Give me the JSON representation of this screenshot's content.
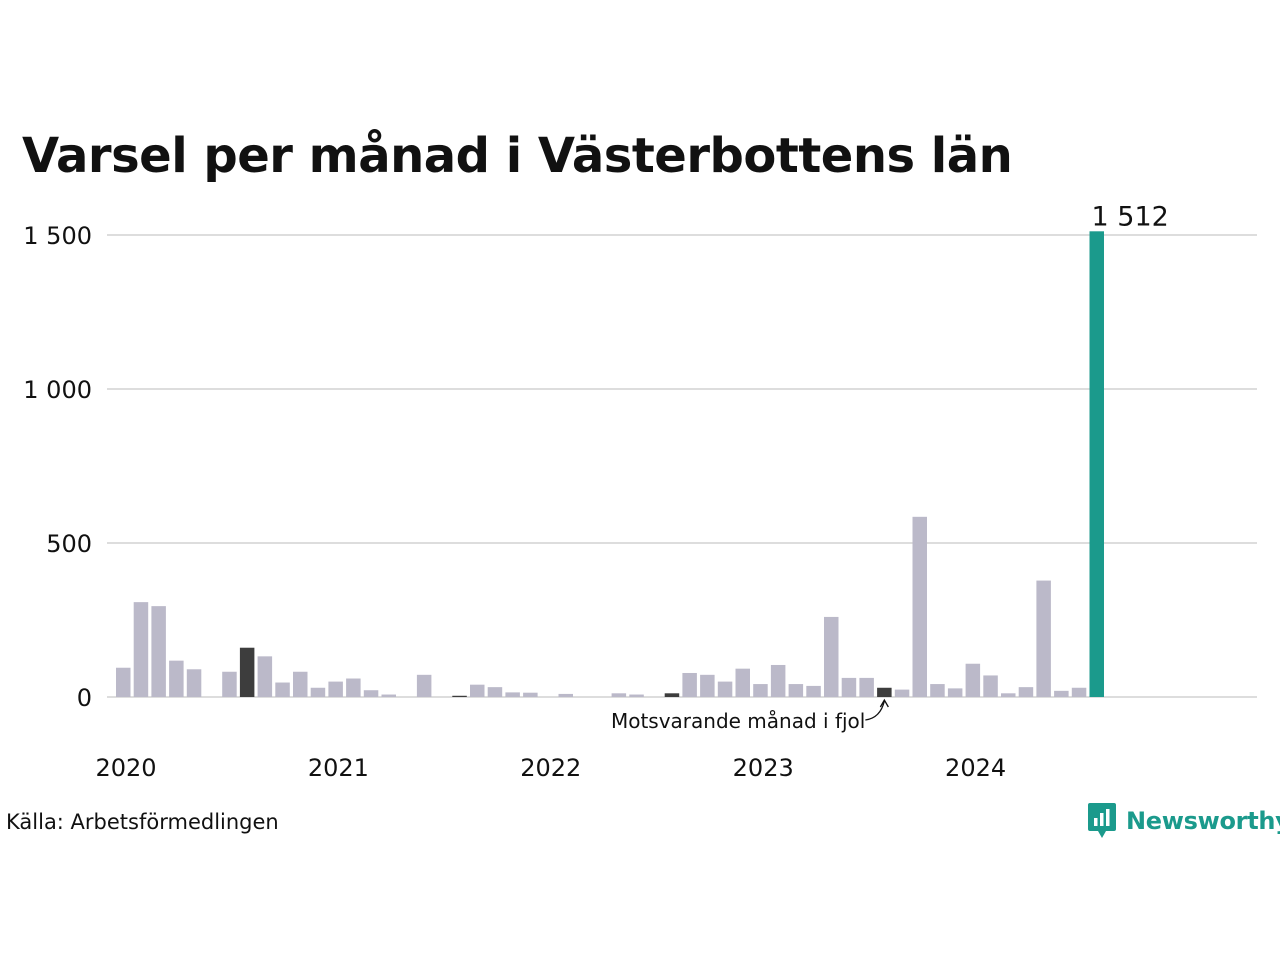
{
  "chart_data": {
    "type": "bar",
    "title": "Varsel per månad i Västerbottens län",
    "xlabel": "",
    "ylabel": "",
    "ylim": [
      0,
      1500
    ],
    "yticks": [
      0,
      500,
      1000,
      1500
    ],
    "ytick_labels": [
      "0",
      "500",
      "1 000",
      "1 500"
    ],
    "x_tick_labels": [
      "2020",
      "2021",
      "2022",
      "2023",
      "2024"
    ],
    "grid": true,
    "start_month": "2020-01",
    "values": [
      95,
      308,
      295,
      118,
      90,
      0,
      82,
      160,
      132,
      47,
      82,
      30,
      50,
      60,
      22,
      8,
      0,
      72,
      0,
      4,
      40,
      32,
      15,
      14,
      0,
      10,
      0,
      0,
      12,
      8,
      0,
      12,
      78,
      72,
      50,
      92,
      42,
      104,
      42,
      36,
      260,
      62,
      62,
      30,
      24,
      585,
      42,
      28,
      108,
      70,
      12,
      32,
      378,
      20,
      30,
      1512
    ],
    "bar_kinds": [
      "normal",
      "normal",
      "normal",
      "normal",
      "normal",
      "normal",
      "normal",
      "dark",
      "normal",
      "normal",
      "normal",
      "normal",
      "normal",
      "normal",
      "normal",
      "normal",
      "normal",
      "normal",
      "normal",
      "dark",
      "normal",
      "normal",
      "normal",
      "normal",
      "normal",
      "normal",
      "normal",
      "normal",
      "normal",
      "normal",
      "normal",
      "dark",
      "normal",
      "normal",
      "normal",
      "normal",
      "normal",
      "normal",
      "normal",
      "normal",
      "normal",
      "normal",
      "normal",
      "dark",
      "normal",
      "normal",
      "normal",
      "normal",
      "normal",
      "normal",
      "normal",
      "normal",
      "normal",
      "normal",
      "normal",
      "highlight"
    ],
    "colors": {
      "normal": "#bbb9c9",
      "dark": "#3d3d3d",
      "highlight": "#1b9a8c",
      "grid": "#dddddd"
    },
    "highlight_label": "1 512",
    "annotation": "Motsvarande månad i fjol"
  },
  "source": "Källa: Arbetsförmedlingen",
  "brand": {
    "name": "Newsworthy",
    "logo_icon": "bar-chart-badge-icon"
  }
}
